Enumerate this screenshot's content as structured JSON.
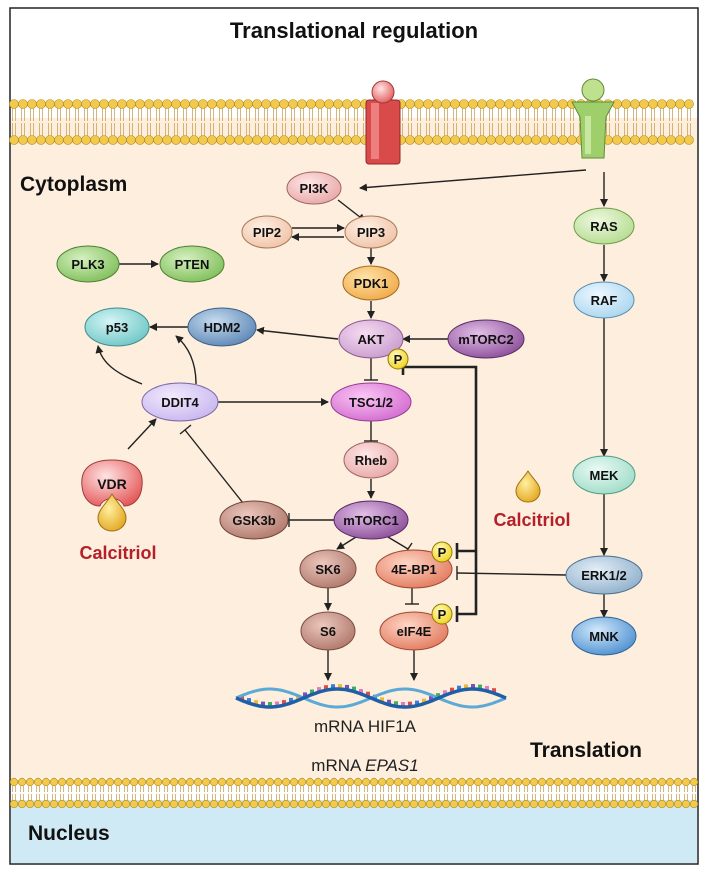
{
  "title": "Translational regulation",
  "regions": {
    "cytoplasm": "Cytoplasm",
    "nucleus": "Nucleus",
    "translation": "Translation"
  },
  "nodes": {
    "pi3k": "PI3K",
    "pip2": "PIP2",
    "pip3": "PIP3",
    "pdk1": "PDK1",
    "akt": "AKT",
    "mtorc2": "mTORC2",
    "tsc": "TSC1/2",
    "rheb": "Rheb",
    "mtorc1": "mTORC1",
    "sk6": "SK6",
    "s6": "S6",
    "bp1": "4E-BP1",
    "eif4e": "eIF4E",
    "plk3": "PLK3",
    "pten": "PTEN",
    "p53": "p53",
    "hdm2": "HDM2",
    "ddit4": "DDIT4",
    "gsk3b": "GSK3b",
    "vdr": "VDR",
    "ras": "RAS",
    "raf": "RAF",
    "mek": "MEK",
    "erk": "ERK1/2",
    "mnk": "MNK"
  },
  "phospho_label": "P",
  "calcitriol_label": "Calcitriol",
  "mrna": {
    "prefix": "mRNA",
    "gene1": "HIF1A",
    "gene2": "EPAS1"
  },
  "colors": {
    "cytoplasm": "#fdeedd",
    "nucleus": "#cfe9f5",
    "membrane_head": "#f2c94c",
    "receptor_red": "#d94a4a",
    "receptor_green": "#9fcf6a",
    "calcitriol": "#b3202a",
    "phospho": "#f7e23e"
  }
}
